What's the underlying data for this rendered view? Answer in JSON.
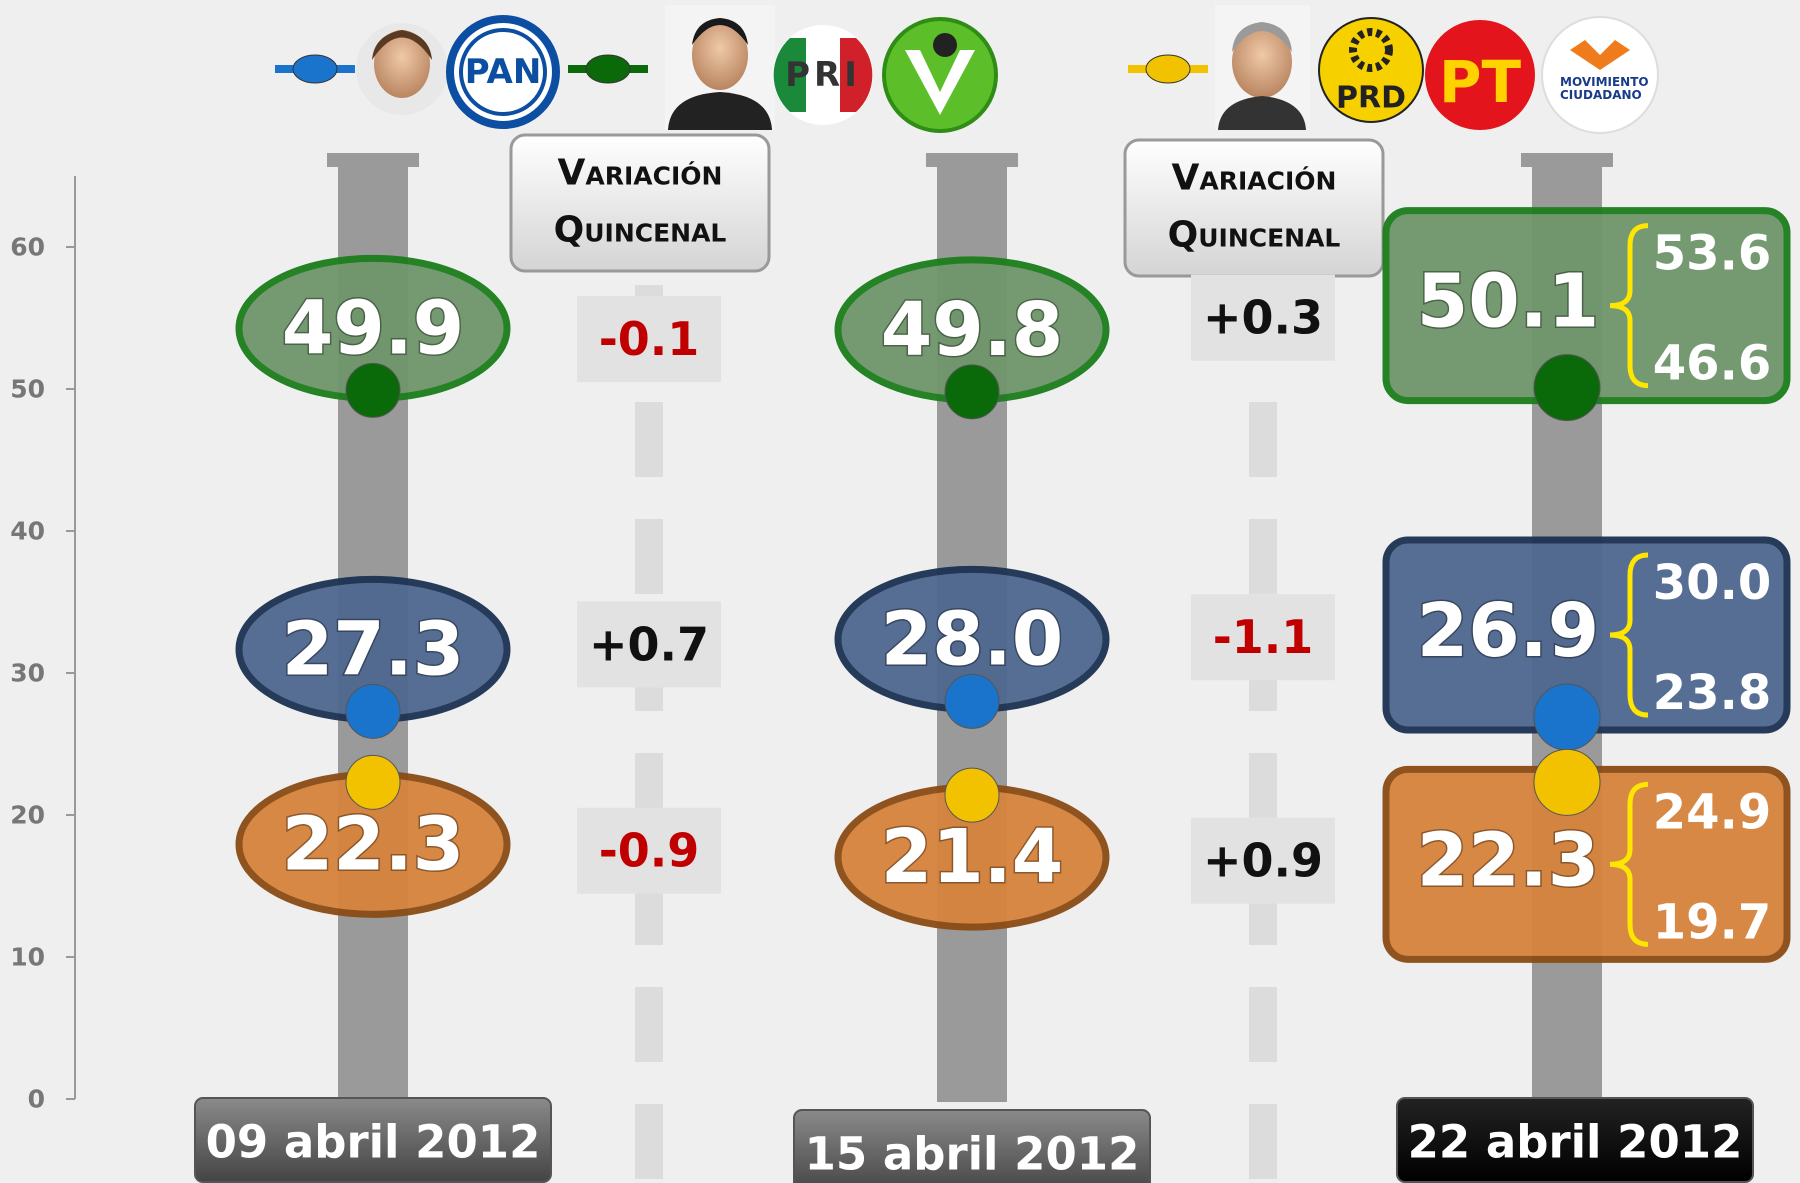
{
  "chart_data": {
    "type": "dot",
    "categories": [
      "09 abril 2012",
      "15 abril 2012",
      "22 abril 2012"
    ],
    "ylim": [
      0,
      65
    ],
    "yticks": [
      0,
      10,
      20,
      30,
      40,
      50,
      60
    ],
    "variation_title": [
      "Variación",
      "Quincenal"
    ],
    "coalition_logos": [
      "PT",
      "MOVIMIENTO CIUDADANO"
    ],
    "series": [
      {
        "name": "PAN",
        "color": "#1a74cc",
        "fill": "#4f6890",
        "stroke": "#1c3152",
        "values": [
          27.3,
          28.0,
          26.9
        ],
        "value_labels": [
          "27.3",
          "28.0",
          "26.9"
        ],
        "interval": [
          23.8,
          30.0
        ],
        "interval_labels": [
          "23.8",
          "30.0"
        ],
        "changes": [
          0.7,
          -1.1
        ],
        "change_labels": [
          "+0.7",
          "-1.1"
        ]
      },
      {
        "name": "PRI",
        "color": "#0a6a0a",
        "fill": "#6f966b",
        "stroke": "#1b7d1b",
        "values": [
          49.9,
          49.8,
          50.1
        ],
        "value_labels": [
          "49.9",
          "49.8",
          "50.1"
        ],
        "interval": [
          46.6,
          53.6
        ],
        "interval_labels": [
          "46.6",
          "53.6"
        ],
        "changes": [
          -0.1,
          0.3
        ],
        "change_labels": [
          "-0.1",
          "+0.3"
        ]
      },
      {
        "name": "PRD",
        "color": "#f2c200",
        "fill": "#d7833c",
        "stroke": "#8a4b14",
        "values": [
          22.3,
          21.4,
          22.3
        ],
        "value_labels": [
          "22.3",
          "21.4",
          "22.3"
        ],
        "interval": [
          19.7,
          24.9
        ],
        "interval_labels": [
          "19.7",
          "24.9"
        ],
        "changes": [
          -0.9,
          0.9
        ],
        "change_labels": [
          "-0.9",
          "+0.9"
        ]
      }
    ]
  }
}
